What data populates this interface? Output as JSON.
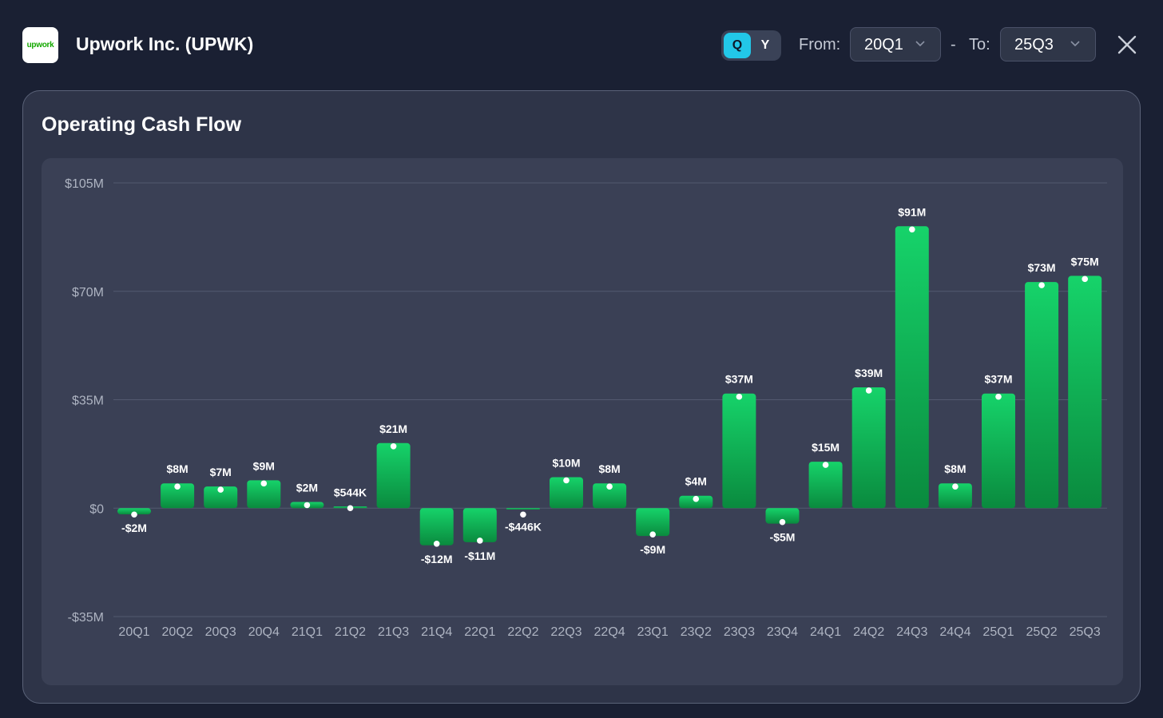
{
  "header": {
    "logo_text": "upwork",
    "company": "Upwork Inc. (UPWK)",
    "period_toggle": {
      "q_label": "Q",
      "y_label": "Y",
      "selected": "Q"
    },
    "from_label": "From:",
    "from_value": "20Q1",
    "range_dash": "-",
    "to_label": "To:",
    "to_value": "25Q3",
    "close_icon": "close-icon",
    "chevron_icon": "chevron-down-icon"
  },
  "colors": {
    "bar_top": "#16d36a",
    "bar_bottom": "#0a8a3e",
    "toggle_active": "#22c7e8",
    "gridline": "#535a70",
    "tick_text": "#aeb4c2"
  },
  "chart_data": {
    "type": "bar",
    "title": "Operating Cash Flow",
    "xlabel": "",
    "ylabel": "",
    "ylim": [
      -35,
      105
    ],
    "y_ticks": [
      -35,
      0,
      35,
      70,
      105
    ],
    "y_tick_labels": [
      "-$35M",
      "$0",
      "$35M",
      "$70M",
      "$105M"
    ],
    "grid": true,
    "categories": [
      "20Q1",
      "20Q2",
      "20Q3",
      "20Q4",
      "21Q1",
      "21Q2",
      "21Q3",
      "21Q4",
      "22Q1",
      "22Q2",
      "22Q3",
      "22Q4",
      "23Q1",
      "23Q2",
      "23Q3",
      "23Q4",
      "24Q1",
      "24Q2",
      "24Q3",
      "24Q4",
      "25Q1",
      "25Q2",
      "25Q3"
    ],
    "values": [
      -2,
      8,
      7,
      9,
      2,
      0.544,
      21,
      -12,
      -11,
      -0.446,
      10,
      8,
      -9,
      4,
      37,
      -5,
      15,
      39,
      91,
      8,
      37,
      73,
      75
    ],
    "data_labels": [
      "-$2M",
      "$8M",
      "$7M",
      "$9M",
      "$2M",
      "$544K",
      "$21M",
      "-$12M",
      "-$11M",
      "-$446K",
      "$10M",
      "$8M",
      "-$9M",
      "$4M",
      "$37M",
      "-$5M",
      "$15M",
      "$39M",
      "$91M",
      "$8M",
      "$37M",
      "$73M",
      "$75M"
    ]
  }
}
